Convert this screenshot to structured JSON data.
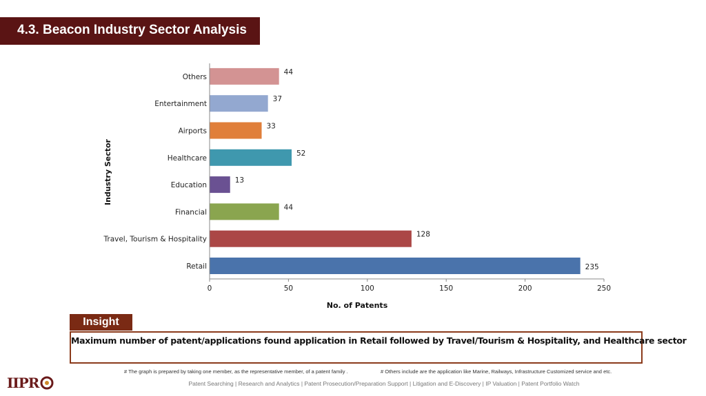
{
  "header": {
    "title": "4.3. Beacon Industry Sector Analysis"
  },
  "colors": {
    "title_bg": "#5a1414",
    "insight_tab": "#7a2a14",
    "insight_border": "#8a3a1a",
    "axis": "#888888"
  },
  "chart_data": {
    "type": "bar",
    "orientation": "horizontal",
    "categories": [
      "Retail",
      "Travel, Tourism & Hospitality",
      "Financial",
      "Education",
      "Healthcare",
      "Airports",
      "Entertainment",
      "Others"
    ],
    "values": [
      235,
      128,
      44,
      13,
      52,
      33,
      37,
      44
    ],
    "bar_colors": [
      "#4a73ab",
      "#ab4746",
      "#8aa54f",
      "#6a5192",
      "#3f98ae",
      "#e07f3a",
      "#93a8d0",
      "#d39393"
    ],
    "xlabel": "No. of Patents",
    "ylabel": "Industry  Sector",
    "xlim": [
      0,
      250
    ],
    "xticks": [
      0,
      50,
      100,
      150,
      200,
      250
    ],
    "data_labels": true,
    "grid": false,
    "legend": false
  },
  "insight": {
    "label": "Insight",
    "text": "Maximum number of patent/applications found application in Retail followed by Travel/Tourism & Hospitality, and Healthcare sector"
  },
  "footnotes": {
    "left": "# The graph is prepared by taking one member, as the representative member, of a patent family .",
    "right": "# Others include are the application like Marine, Railways, Infrastructure Customized service and etc."
  },
  "footer": {
    "text": "Patent Searching | Research and Analytics | Patent Prosecution/Preparation Support | Litigation and E-Discovery | IP Valuation | Patent Portfolio Watch"
  },
  "logo": {
    "text": "IIPRD"
  }
}
